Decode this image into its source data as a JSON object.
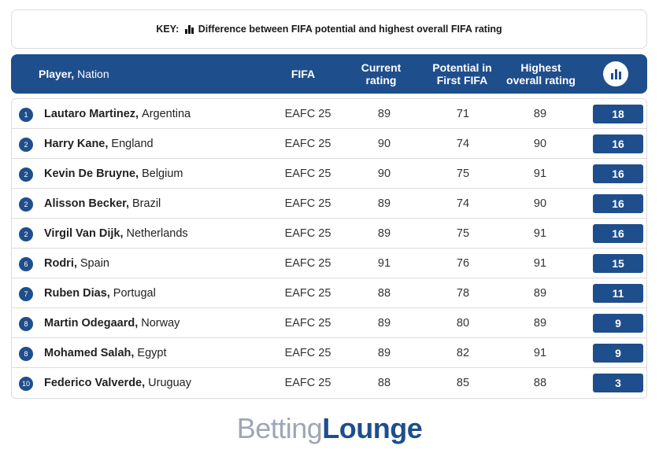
{
  "key": {
    "label": "KEY:",
    "icon": "bar-chart-icon",
    "text": "Difference between FIFA potential and highest overall FIFA rating"
  },
  "columns": {
    "player": "Player,",
    "nation": "Nation",
    "fifa": "FIFA",
    "current": "Current rating",
    "potential": "Potential in First FIFA",
    "highest": "Highest overall rating",
    "diff_icon": "bar-chart-icon"
  },
  "rows": [
    {
      "rank": "1",
      "player": "Lautaro Martinez,",
      "nation": "Argentina",
      "fifa": "EAFC 25",
      "current": "89",
      "potential": "71",
      "highest": "89",
      "diff": "18"
    },
    {
      "rank": "2",
      "player": "Harry Kane,",
      "nation": "England",
      "fifa": "EAFC 25",
      "current": "90",
      "potential": "74",
      "highest": "90",
      "diff": "16"
    },
    {
      "rank": "2",
      "player": "Kevin De Bruyne,",
      "nation": "Belgium",
      "fifa": "EAFC 25",
      "current": "90",
      "potential": "75",
      "highest": "91",
      "diff": "16"
    },
    {
      "rank": "2",
      "player": "Alisson Becker,",
      "nation": "Brazil",
      "fifa": "EAFC 25",
      "current": "89",
      "potential": "74",
      "highest": "90",
      "diff": "16"
    },
    {
      "rank": "2",
      "player": "Virgil Van Dijk,",
      "nation": "Netherlands",
      "fifa": "EAFC 25",
      "current": "89",
      "potential": "75",
      "highest": "91",
      "diff": "16"
    },
    {
      "rank": "6",
      "player": "Rodri,",
      "nation": "Spain",
      "fifa": "EAFC 25",
      "current": "91",
      "potential": "76",
      "highest": "91",
      "diff": "15"
    },
    {
      "rank": "7",
      "player": "Ruben Dias,",
      "nation": "Portugal",
      "fifa": "EAFC 25",
      "current": "88",
      "potential": "78",
      "highest": "89",
      "diff": "11"
    },
    {
      "rank": "8",
      "player": "Martin Odegaard,",
      "nation": "Norway",
      "fifa": "EAFC 25",
      "current": "89",
      "potential": "80",
      "highest": "89",
      "diff": "9"
    },
    {
      "rank": "8",
      "player": "Mohamed Salah,",
      "nation": "Egypt",
      "fifa": "EAFC 25",
      "current": "89",
      "potential": "82",
      "highest": "91",
      "diff": "9"
    },
    {
      "rank": "10",
      "player": "Federico Valverde,",
      "nation": "Uruguay",
      "fifa": "EAFC 25",
      "current": "88",
      "potential": "85",
      "highest": "88",
      "diff": "3"
    }
  ],
  "logo": {
    "part1": "Betting",
    "part2": "Lounge"
  },
  "colors": {
    "accent": "#1f4e8c",
    "logo_light": "#9fa6b5"
  }
}
